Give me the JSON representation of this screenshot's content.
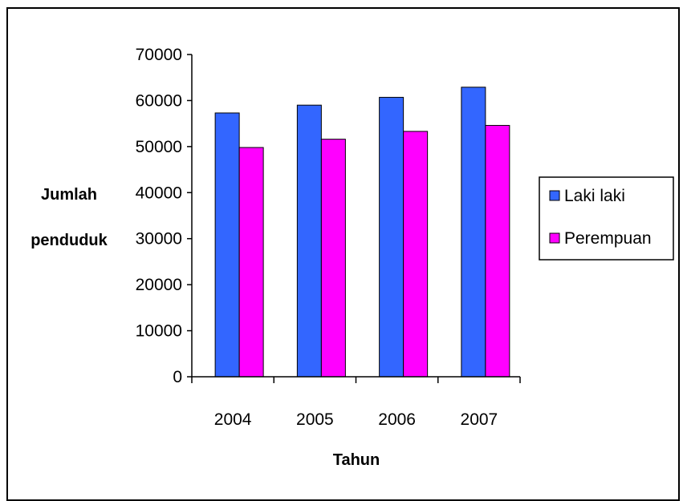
{
  "chart_data": {
    "type": "bar",
    "categories": [
      "2004",
      "2005",
      "2006",
      "2007"
    ],
    "series": [
      {
        "name": "Laki laki",
        "values": [
          57300,
          59000,
          60700,
          62900
        ],
        "color": "#3366ff"
      },
      {
        "name": "Perempuan",
        "values": [
          49800,
          51600,
          53300,
          54600
        ],
        "color": "#ff00ff"
      }
    ],
    "xlabel": "Tahun",
    "ylabel": [
      "Jumlah",
      "penduduk"
    ],
    "ylim": [
      0,
      70000
    ],
    "yticks": [
      "0",
      "10000",
      "20000",
      "30000",
      "40000",
      "50000",
      "60000",
      "70000"
    ],
    "grid": false,
    "legend_position": "right",
    "colors": {
      "bar_outline": "#000000",
      "axis": "#000000",
      "border": "#000000"
    }
  }
}
